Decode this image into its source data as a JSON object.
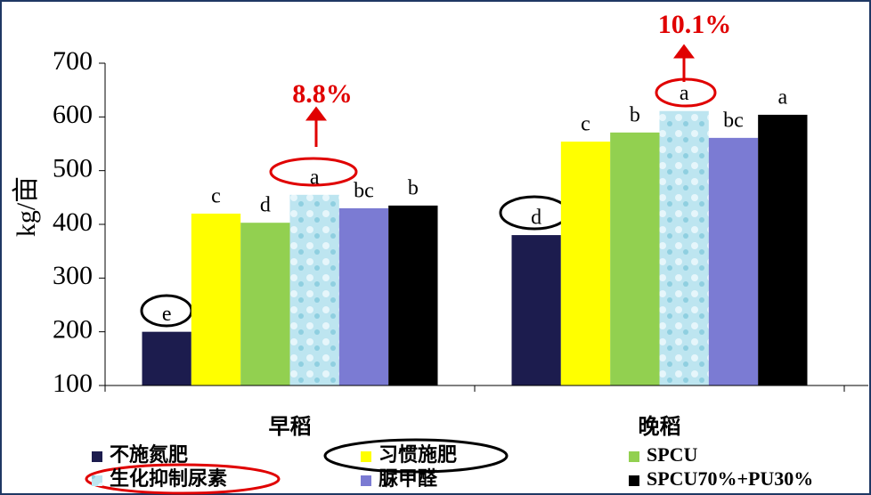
{
  "chart_data": {
    "type": "bar",
    "y_label": "kg/亩",
    "categories": [
      "早稻",
      "晚稻"
    ],
    "series": [
      {
        "name": "不施氮肥",
        "color": "#1c1c4e",
        "values": [
          200,
          380
        ],
        "letters": [
          "e",
          "d"
        ]
      },
      {
        "name": "习惯施肥",
        "color": "#ffff00",
        "values": [
          420,
          554
        ],
        "letters": [
          "c",
          "c"
        ]
      },
      {
        "name": "SPCU",
        "color": "#92d050",
        "values": [
          403,
          571
        ],
        "letters": [
          "d",
          "b"
        ]
      },
      {
        "name": "生化抑制尿素",
        "color": "#bde5f0",
        "values": [
          455,
          611
        ],
        "letters": [
          "a",
          "a"
        ]
      },
      {
        "name": "脲甲醛",
        "color": "#7b7bd3",
        "values": [
          430,
          561
        ],
        "letters": [
          "bc",
          "bc"
        ]
      },
      {
        "name": "SPCU70%+PU30%",
        "color": "#000000",
        "values": [
          435,
          604
        ],
        "letters": [
          "b",
          "a"
        ]
      }
    ],
    "annotations": [
      "8.8%",
      "10.1%"
    ],
    "ylim": [
      100,
      700
    ],
    "yticks": [
      100,
      200,
      300,
      400,
      500,
      600,
      700
    ]
  }
}
